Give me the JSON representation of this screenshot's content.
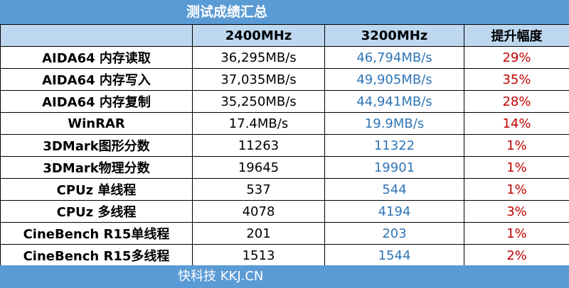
{
  "title": "测试成绩汇总",
  "columns": [
    "",
    "2400MHz",
    "3200MHz",
    "提升幅度"
  ],
  "rows": [
    {
      "label": "AIDA64 内存读取",
      "v2400": "36,295MB/s",
      "v3200": "46,794MB/s",
      "gain": "29%"
    },
    {
      "label": "AIDA64 内存写入",
      "v2400": "37,035MB/s",
      "v3200": "49,905MB/s",
      "gain": "35%"
    },
    {
      "label": "AIDA64 内存复制",
      "v2400": "35,250MB/s",
      "v3200": "44,941MB/s",
      "gain": "28%"
    },
    {
      "label": "WinRAR",
      "v2400": "17.4MB/s",
      "v3200": "19.9MB/s",
      "gain": "14%"
    },
    {
      "label": "3DMark图形分数",
      "v2400": "11263",
      "v3200": "11322",
      "gain": "1%"
    },
    {
      "label": "3DMark物理分数",
      "v2400": "19645",
      "v3200": "19901",
      "gain": "1%"
    },
    {
      "label": "CPUz 单线程",
      "v2400": "537",
      "v3200": "544",
      "gain": "1%"
    },
    {
      "label": "CPUz 多线程",
      "v2400": "4078",
      "v3200": "4194",
      "gain": "3%"
    },
    {
      "label": "CineBench R15单线程",
      "v2400": "201",
      "v3200": "203",
      "gain": "1%"
    },
    {
      "label": "CineBench R15多线程",
      "v2400": "1513",
      "v3200": "1544",
      "gain": "2%"
    }
  ],
  "footer": "快科技 KKJ.CN",
  "colors": {
    "header_bar": "#5b9bd5",
    "column_header": "#bdd7ee",
    "value_3200": "#2e75b6",
    "gain": "#c00000"
  }
}
